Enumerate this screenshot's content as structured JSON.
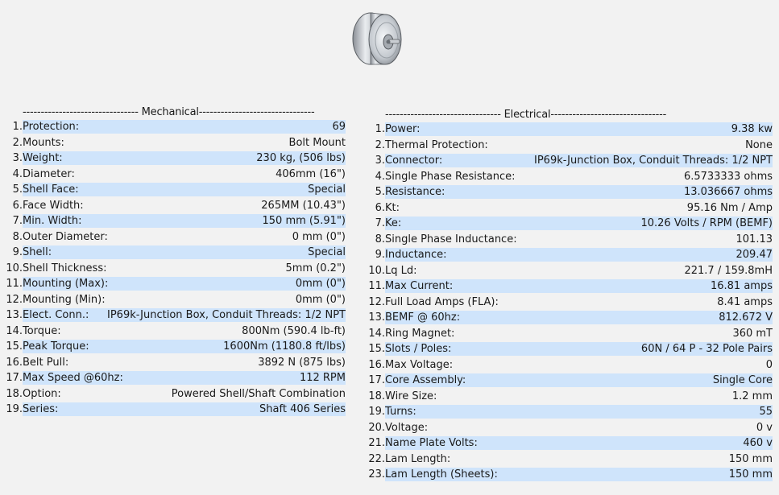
{
  "product_image": {
    "icon": "motor-pulley-icon"
  },
  "mechanical": {
    "header": "-------------------------------- Mechanical--------------------------------",
    "rows": [
      {
        "num": "1.",
        "label": "Protection:",
        "value": "69"
      },
      {
        "num": "2.",
        "label": "Mounts:",
        "value": "Bolt Mount"
      },
      {
        "num": "3.",
        "label": "Weight:",
        "value": "230 kg, (506 lbs)"
      },
      {
        "num": "4.",
        "label": "Diameter:",
        "value": "406mm (16\")"
      },
      {
        "num": "5.",
        "label": "Shell Face:",
        "value": "Special"
      },
      {
        "num": "6.",
        "label": "Face Width:",
        "value": "265MM (10.43\")"
      },
      {
        "num": "7.",
        "label": "Min. Width:",
        "value": "150 mm (5.91\")"
      },
      {
        "num": "8.",
        "label": "Outer Diameter:",
        "value": "0 mm (0\")"
      },
      {
        "num": "9.",
        "label": "Shell:",
        "value": "Special"
      },
      {
        "num": "10.",
        "label": "Shell Thickness:",
        "value": "5mm (0.2\")"
      },
      {
        "num": "11.",
        "label": "Mounting (Max):",
        "value": "0mm (0\")"
      },
      {
        "num": "12.",
        "label": "Mounting (Min):",
        "value": "0mm (0\")"
      },
      {
        "num": "13.",
        "label": "Elect. Conn.:",
        "value": "IP69k-Junction Box, Conduit Threads: 1/2 NPT"
      },
      {
        "num": "14.",
        "label": "Torque:",
        "value": "800Nm (590.4 lb-ft)"
      },
      {
        "num": "15.",
        "label": "Peak Torque:",
        "value": "1600Nm (1180.8 ft/lbs)"
      },
      {
        "num": "16.",
        "label": "Belt Pull:",
        "value": "3892 N (875 lbs)"
      },
      {
        "num": "17.",
        "label": "Max Speed @60hz:",
        "value": "112 RPM"
      },
      {
        "num": "18.",
        "label": "Option:",
        "value": "Powered Shell/Shaft Combination"
      },
      {
        "num": "19.",
        "label": "Series:",
        "value": "Shaft 406 Series"
      }
    ]
  },
  "electrical": {
    "header": "-------------------------------- Electrical--------------------------------",
    "rows": [
      {
        "num": "1.",
        "label": "Power:",
        "value": "9.38 kw"
      },
      {
        "num": "2.",
        "label": "Thermal Protection:",
        "value": "None"
      },
      {
        "num": "3.",
        "label": "Connector:",
        "value": "IP69k-Junction Box, Conduit Threads: 1/2 NPT"
      },
      {
        "num": "4.",
        "label": "Single Phase Resistance:",
        "value": "6.5733333 ohms"
      },
      {
        "num": "5.",
        "label": "Resistance:",
        "value": "13.036667 ohms"
      },
      {
        "num": "6.",
        "label": "Kt:",
        "value": "95.16 Nm / Amp"
      },
      {
        "num": "7.",
        "label": "Ke:",
        "value": "10.26 Volts / RPM (BEMF)"
      },
      {
        "num": "8.",
        "label": "Single Phase Inductance:",
        "value": "101.13"
      },
      {
        "num": "9.",
        "label": "Inductance:",
        "value": "209.47"
      },
      {
        "num": "10.",
        "label": "Lq Ld:",
        "value": "221.7 / 159.8mH"
      },
      {
        "num": "11.",
        "label": "Max Current:",
        "value": "16.81 amps"
      },
      {
        "num": "12.",
        "label": "Full Load Amps (FLA):",
        "value": "8.41 amps"
      },
      {
        "num": "13.",
        "label": "BEMF @ 60hz:",
        "value": "812.672 V"
      },
      {
        "num": "14.",
        "label": "Ring Magnet:",
        "value": "360 mT"
      },
      {
        "num": "15.",
        "label": "Slots / Poles:",
        "value": "60N / 64 P - 32 Pole Pairs"
      },
      {
        "num": "16.",
        "label": "Max Voltage:",
        "value": "0"
      },
      {
        "num": "17.",
        "label": "Core Assembly:",
        "value": "Single Core"
      },
      {
        "num": "18.",
        "label": "Wire Size:",
        "value": "1.2 mm"
      },
      {
        "num": "19.",
        "label": "Turns:",
        "value": "55"
      },
      {
        "num": "20.",
        "label": "Voltage:",
        "value": "0 v"
      },
      {
        "num": "21.",
        "label": "Name Plate Volts:",
        "value": "460 v"
      },
      {
        "num": "22.",
        "label": "Lam Length:",
        "value": "150 mm"
      },
      {
        "num": "23.",
        "label": "Lam Length (Sheets):",
        "value": "150 mm"
      }
    ]
  }
}
